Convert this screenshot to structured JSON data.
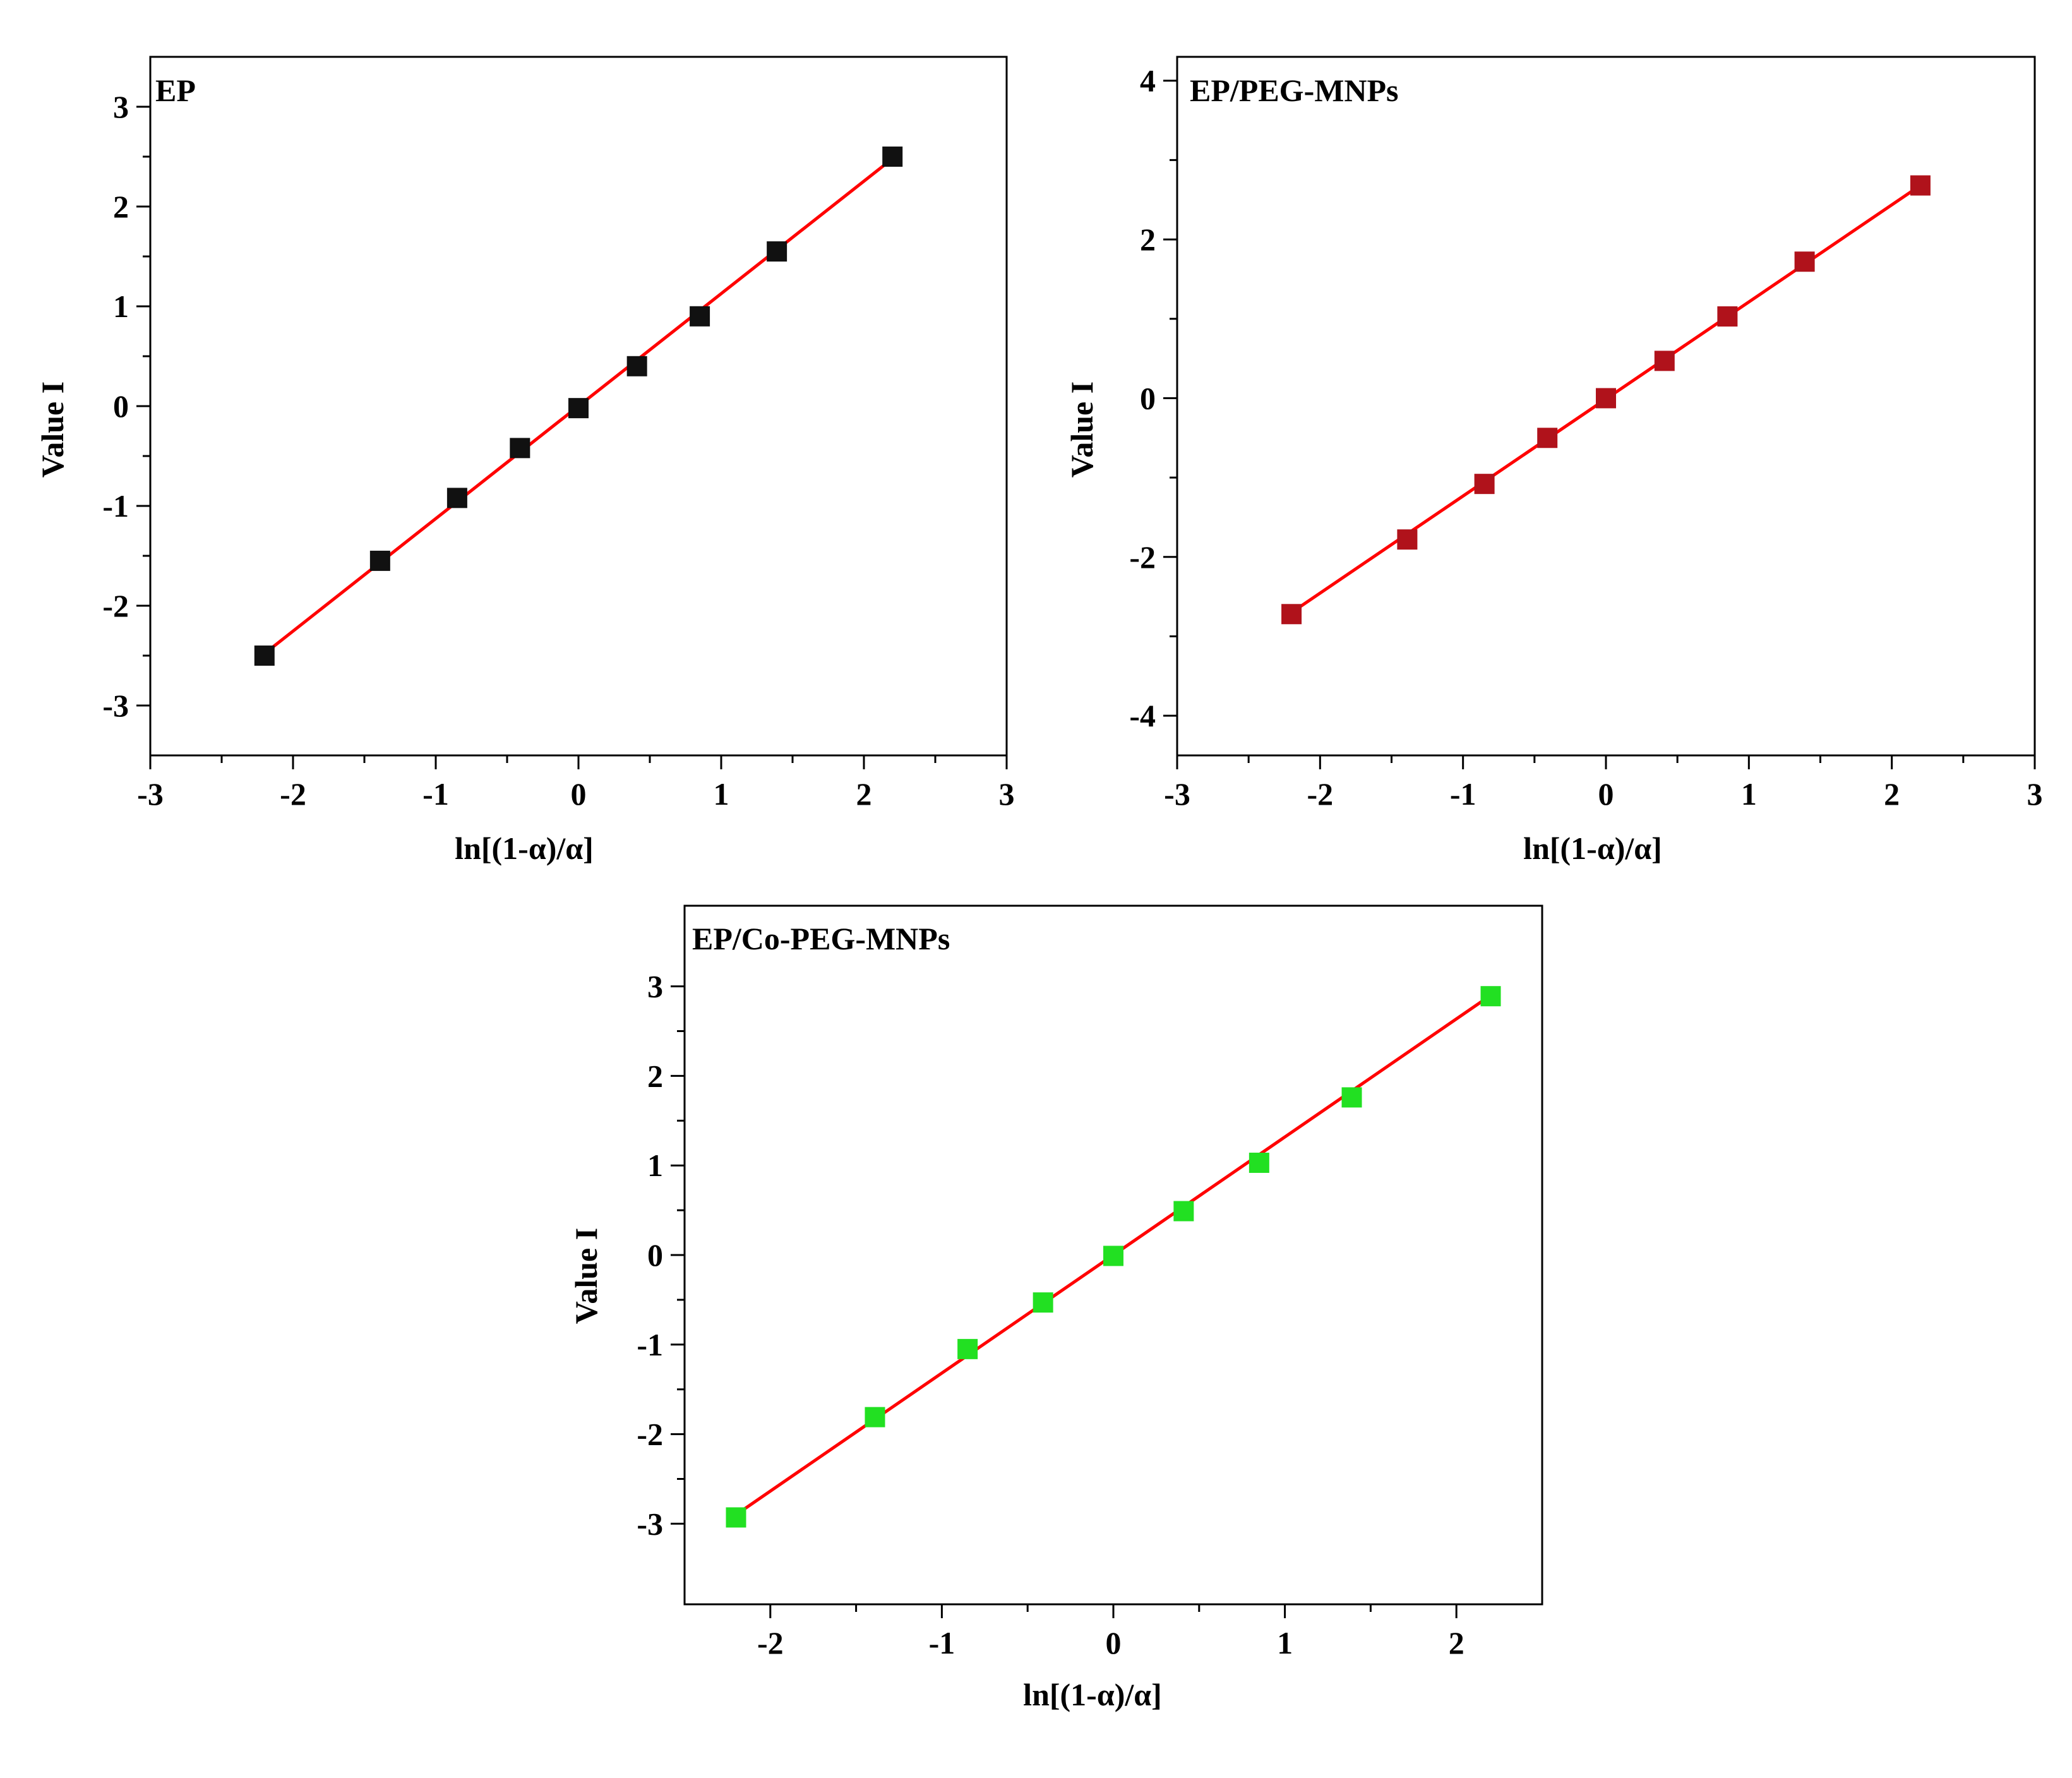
{
  "figure": {
    "background": "#ffffff"
  },
  "chart_data": [
    {
      "id": "ep",
      "type": "scatter",
      "title": "EP",
      "xlabel": "ln[(1-α)/α]",
      "ylabel": "Value I",
      "xlim": [
        -3,
        3
      ],
      "ylim": [
        -3.5,
        3.5
      ],
      "xticks": [
        "-3",
        "-2",
        "-1",
        "0",
        "1",
        "2",
        "3"
      ],
      "yticks": [
        "-3",
        "-2",
        "-1",
        "0",
        "1",
        "2",
        "3"
      ],
      "series": [
        {
          "name": "EP",
          "marker": "square",
          "color": "#111111",
          "x": [
            -2.2,
            -1.39,
            -0.85,
            -0.41,
            0.0,
            0.41,
            0.85,
            1.39,
            2.2
          ],
          "y": [
            -2.5,
            -1.55,
            -0.92,
            -0.42,
            -0.02,
            0.4,
            0.9,
            1.55,
            2.5
          ]
        }
      ],
      "fit": {
        "color": "#ff0000",
        "x": [
          -2.2,
          2.2
        ],
        "y": [
          -2.48,
          2.48
        ]
      },
      "grid": false
    },
    {
      "id": "ep-peg",
      "type": "scatter",
      "title": "EP/PEG-MNPs",
      "xlabel": "ln[(1-α)/α]",
      "ylabel": "Value I",
      "xlim": [
        -3,
        3
      ],
      "ylim": [
        -4.5,
        4.3
      ],
      "xticks": [
        "-3",
        "-2",
        "-1",
        "0",
        "1",
        "2",
        "3"
      ],
      "yticks": [
        "-4",
        "-2",
        "0",
        "2",
        "4"
      ],
      "series": [
        {
          "name": "EP/PEG-MNPs",
          "marker": "square",
          "color": "#b0121b",
          "x": [
            -2.2,
            -1.39,
            -0.85,
            -0.41,
            0.0,
            0.41,
            0.85,
            1.39,
            2.2
          ],
          "y": [
            -2.72,
            -1.78,
            -1.08,
            -0.5,
            0.0,
            0.47,
            1.03,
            1.72,
            2.68
          ]
        }
      ],
      "fit": {
        "color": "#ff0000",
        "x": [
          -2.2,
          2.2
        ],
        "y": [
          -2.7,
          2.68
        ]
      },
      "grid": false
    },
    {
      "id": "ep-co-peg",
      "type": "scatter",
      "title": "EP/Co-PEG-MNPs",
      "xlabel": "ln[(1-α)/α]",
      "ylabel": "Value I",
      "xlim": [
        -2.5,
        2.5
      ],
      "ylim": [
        -3.9,
        3.9
      ],
      "xticks": [
        "-2",
        "-1",
        "0",
        "1",
        "2"
      ],
      "yticks": [
        "-3",
        "-2",
        "-1",
        "0",
        "1",
        "2",
        "3"
      ],
      "series": [
        {
          "name": "EP/Co-PEG-MNPs",
          "marker": "square",
          "color": "#22e022",
          "x": [
            -2.2,
            -1.39,
            -0.85,
            -0.41,
            0.0,
            0.41,
            0.85,
            1.39,
            2.2
          ],
          "y": [
            -2.93,
            -1.81,
            -1.05,
            -0.53,
            -0.01,
            0.49,
            1.03,
            1.76,
            2.89
          ]
        }
      ],
      "fit": {
        "color": "#ff0000",
        "x": [
          -2.2,
          2.2
        ],
        "y": [
          -2.9,
          2.9
        ]
      },
      "grid": false
    }
  ]
}
